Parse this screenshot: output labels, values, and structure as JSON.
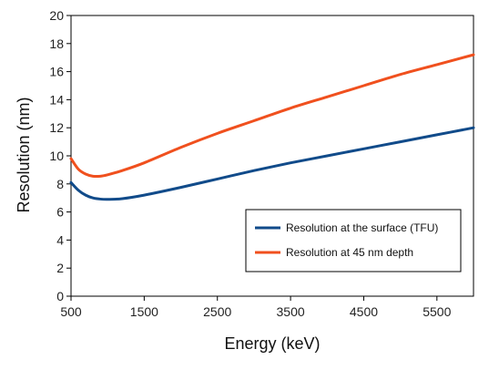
{
  "chart_data": {
    "type": "line",
    "title": "",
    "xlabel": "Energy (keV)",
    "ylabel": "Resolution (nm)",
    "xlim": [
      500,
      6000
    ],
    "ylim": [
      0,
      20
    ],
    "xticks": [
      500,
      1500,
      2500,
      3500,
      4500,
      5500
    ],
    "yticks": [
      0,
      2,
      4,
      6,
      8,
      10,
      12,
      14,
      16,
      18,
      20
    ],
    "grid": false,
    "legend": "bottom-right",
    "series": [
      {
        "name": "Resolution at the surface (TFU)",
        "color": "#114b8a",
        "x": [
          500,
          600,
          700,
          800,
          900,
          1000,
          1200,
          1500,
          2000,
          2500,
          3000,
          3500,
          4000,
          4500,
          5000,
          5500,
          6000
        ],
        "y": [
          8.1,
          7.55,
          7.2,
          7.0,
          6.92,
          6.9,
          6.95,
          7.2,
          7.75,
          8.35,
          8.95,
          9.5,
          10.0,
          10.5,
          11.0,
          11.5,
          12.0
        ]
      },
      {
        "name": "Resolution at 45 nm depth",
        "color": "#f0501e",
        "x": [
          500,
          600,
          700,
          800,
          900,
          1000,
          1200,
          1500,
          2000,
          2500,
          3000,
          3500,
          4000,
          4500,
          5000,
          5500,
          6000
        ],
        "y": [
          9.8,
          9.05,
          8.7,
          8.55,
          8.55,
          8.65,
          8.95,
          9.5,
          10.6,
          11.6,
          12.5,
          13.4,
          14.2,
          15.0,
          15.8,
          16.5,
          17.2
        ]
      }
    ]
  }
}
